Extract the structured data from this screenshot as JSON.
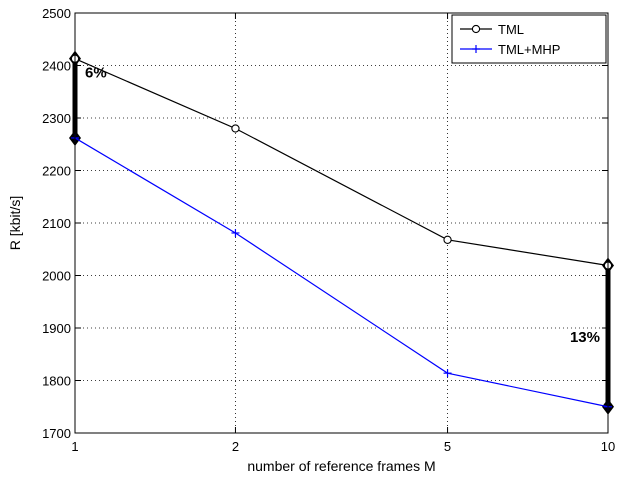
{
  "chart_data": {
    "type": "line",
    "categories": [
      "1",
      "2",
      "5",
      "10"
    ],
    "x": [
      1,
      2,
      5,
      10
    ],
    "xlabel": "number of reference frames M",
    "ylabel": "R [kbit/s]",
    "ylim": [
      1700,
      2500
    ],
    "yticks": [
      "1700",
      "1800",
      "1900",
      "2000",
      "2100",
      "2200",
      "2300",
      "2400",
      "2500"
    ],
    "grid": true,
    "legend_position": "top-right",
    "series": [
      {
        "name": "TML",
        "values": [
          2413,
          2280,
          2068,
          2019
        ],
        "color": "#000000",
        "marker": "circle"
      },
      {
        "name": "TML+MHP",
        "values": [
          2262,
          2081,
          1814,
          1750
        ],
        "color": "#0000ff",
        "marker": "plus"
      }
    ],
    "annotations": [
      {
        "text": "6%",
        "x": 1,
        "from": 2262,
        "to": 2413
      },
      {
        "text": "13%",
        "x": 10,
        "from": 1750,
        "to": 2019
      }
    ]
  }
}
